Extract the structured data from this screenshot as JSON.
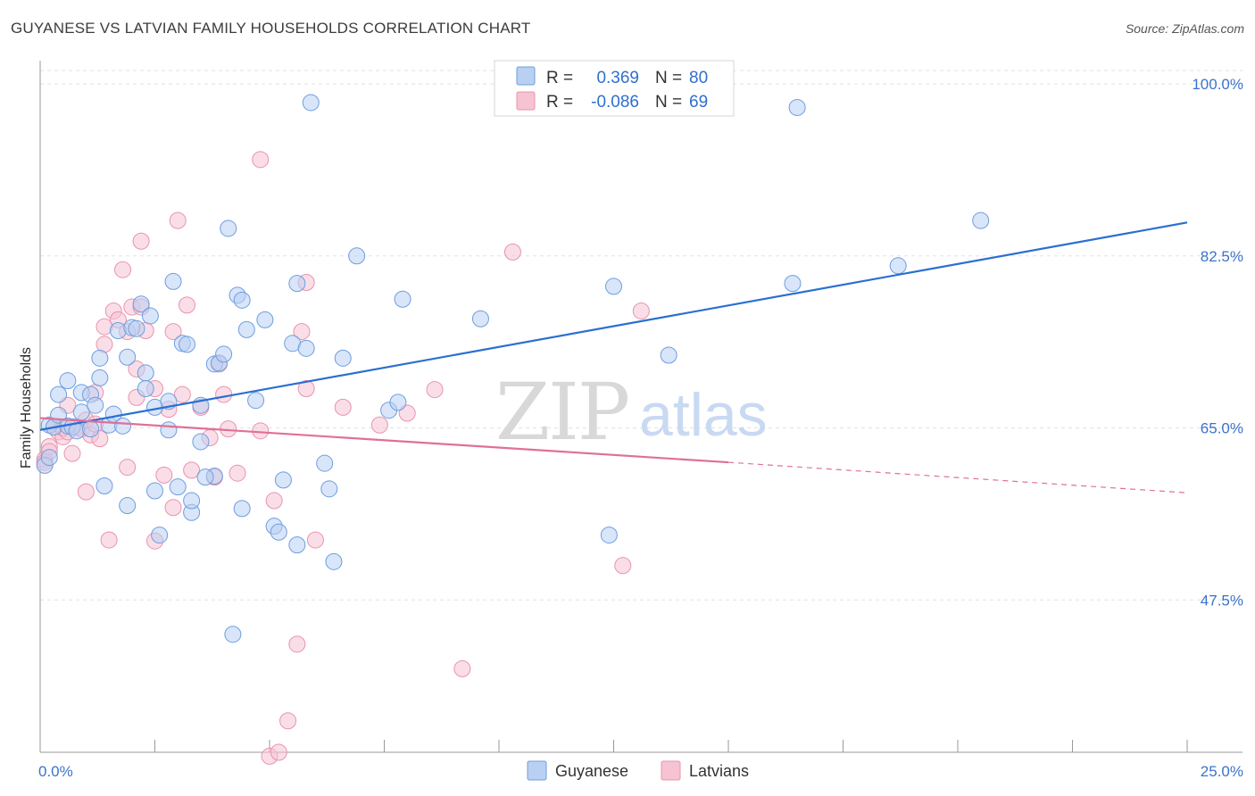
{
  "title": "GUYANESE VS LATVIAN FAMILY HOUSEHOLDS CORRELATION CHART",
  "source": "Source: ZipAtlas.com",
  "watermark": {
    "zip": "ZIP",
    "atlas": "atlas"
  },
  "legend": {
    "rows": [
      {
        "r_label": "R =",
        "r_value": "0.369",
        "n_label": "N =",
        "n_value": "80"
      },
      {
        "r_label": "R =",
        "r_value": "-0.086",
        "n_label": "N =",
        "n_value": "69"
      }
    ]
  },
  "bottom_legend": [
    "Guyanese",
    "Latvians"
  ],
  "colors": {
    "guyanese_fill": "#b9d0f2",
    "guyanese_stroke": "#6d9ee0",
    "guyanese_line": "#2a6fd1",
    "latvian_fill": "#f6c3d3",
    "latvian_stroke": "#e993ae",
    "latvian_line": "#e07097",
    "grid": "#e2e2e2",
    "tick_label": "#3b73c9"
  },
  "chart_data": {
    "type": "scatter",
    "title": "GUYANESE VS LATVIAN FAMILY HOUSEHOLDS CORRELATION CHART",
    "xlabel": "",
    "ylabel": "Family Households",
    "xlim": [
      0,
      25
    ],
    "ylim": [
      32,
      102
    ],
    "x_tick_labels": [
      "0.0%",
      "25.0%"
    ],
    "y_ticks": [
      47.5,
      65.0,
      82.5,
      100.0
    ],
    "y_tick_labels": [
      "47.5%",
      "65.0%",
      "82.5%",
      "100.0%"
    ],
    "grid": true,
    "legend_position": "top-center",
    "series": [
      {
        "name": "Guyanese",
        "r": 0.369,
        "n": 80,
        "trend": {
          "x": [
            0,
            25
          ],
          "y": [
            64.8,
            85.9
          ]
        },
        "points": [
          [
            0.1,
            61.2
          ],
          [
            0.2,
            65.3
          ],
          [
            0.3,
            65.1
          ],
          [
            0.4,
            66.3
          ],
          [
            0.4,
            68.4
          ],
          [
            0.6,
            69.8
          ],
          [
            0.6,
            65.2
          ],
          [
            0.7,
            65.1
          ],
          [
            0.8,
            64.7
          ],
          [
            0.9,
            66.6
          ],
          [
            0.9,
            68.6
          ],
          [
            1.1,
            68.4
          ],
          [
            1.2,
            67.3
          ],
          [
            1.3,
            72.1
          ],
          [
            1.3,
            70.1
          ],
          [
            1.4,
            59.1
          ],
          [
            1.5,
            65.3
          ],
          [
            1.6,
            66.4
          ],
          [
            1.7,
            74.9
          ],
          [
            1.8,
            65.2
          ],
          [
            1.9,
            72.2
          ],
          [
            1.9,
            57.1
          ],
          [
            2.0,
            75.2
          ],
          [
            2.1,
            75.1
          ],
          [
            2.2,
            77.6
          ],
          [
            2.3,
            70.6
          ],
          [
            2.3,
            69.0
          ],
          [
            2.4,
            76.4
          ],
          [
            2.5,
            67.1
          ],
          [
            2.5,
            58.6
          ],
          [
            2.6,
            54.1
          ],
          [
            2.8,
            67.7
          ],
          [
            2.8,
            64.8
          ],
          [
            2.9,
            79.9
          ],
          [
            3.0,
            59.0
          ],
          [
            3.1,
            73.6
          ],
          [
            3.2,
            73.5
          ],
          [
            3.3,
            56.4
          ],
          [
            3.3,
            57.6
          ],
          [
            3.5,
            63.6
          ],
          [
            3.5,
            67.3
          ],
          [
            3.8,
            60.1
          ],
          [
            3.8,
            71.5
          ],
          [
            3.9,
            71.6
          ],
          [
            4.0,
            72.5
          ],
          [
            4.1,
            85.3
          ],
          [
            4.2,
            44.0
          ],
          [
            4.3,
            78.5
          ],
          [
            4.4,
            56.8
          ],
          [
            4.4,
            78.0
          ],
          [
            4.5,
            75.0
          ],
          [
            4.7,
            67.8
          ],
          [
            4.9,
            76.0
          ],
          [
            5.1,
            55.0
          ],
          [
            5.2,
            54.4
          ],
          [
            5.3,
            59.7
          ],
          [
            5.5,
            73.6
          ],
          [
            5.6,
            79.7
          ],
          [
            5.6,
            53.1
          ],
          [
            5.8,
            73.1
          ],
          [
            5.9,
            98.1
          ],
          [
            6.2,
            61.4
          ],
          [
            6.3,
            58.8
          ],
          [
            6.4,
            51.4
          ],
          [
            6.6,
            72.1
          ],
          [
            6.9,
            82.5
          ],
          [
            7.6,
            66.8
          ],
          [
            7.8,
            67.6
          ],
          [
            7.9,
            78.1
          ],
          [
            9.6,
            76.1
          ],
          [
            12.4,
            54.1
          ],
          [
            12.5,
            79.4
          ],
          [
            13.7,
            72.4
          ],
          [
            16.4,
            79.7
          ],
          [
            16.5,
            97.6
          ],
          [
            18.7,
            81.5
          ],
          [
            20.5,
            86.1
          ],
          [
            0.2,
            62.0
          ],
          [
            1.1,
            64.9
          ],
          [
            3.6,
            60.0
          ]
        ]
      },
      {
        "name": "Latvians",
        "r": -0.086,
        "n": 69,
        "trend": {
          "x": [
            0,
            15
          ],
          "y": [
            66.0,
            61.5
          ]
        },
        "trend_dashed": {
          "x": [
            15,
            25
          ],
          "y": [
            61.5,
            58.4
          ]
        },
        "points": [
          [
            0.1,
            61.8
          ],
          [
            0.1,
            61.5
          ],
          [
            0.2,
            63.1
          ],
          [
            0.2,
            62.6
          ],
          [
            0.3,
            65.1
          ],
          [
            0.4,
            64.6
          ],
          [
            0.5,
            64.1
          ],
          [
            0.5,
            65.0
          ],
          [
            0.6,
            64.6
          ],
          [
            0.6,
            67.3
          ],
          [
            0.7,
            62.4
          ],
          [
            0.8,
            65.1
          ],
          [
            0.9,
            64.9
          ],
          [
            1.0,
            58.5
          ],
          [
            1.0,
            65.8
          ],
          [
            1.1,
            64.3
          ],
          [
            1.2,
            65.4
          ],
          [
            1.2,
            68.6
          ],
          [
            1.3,
            63.9
          ],
          [
            1.4,
            73.5
          ],
          [
            1.4,
            75.3
          ],
          [
            1.5,
            53.6
          ],
          [
            1.6,
            76.9
          ],
          [
            1.7,
            76.0
          ],
          [
            1.8,
            81.1
          ],
          [
            1.9,
            61.0
          ],
          [
            1.9,
            74.8
          ],
          [
            2.0,
            77.3
          ],
          [
            2.1,
            71.0
          ],
          [
            2.1,
            68.1
          ],
          [
            2.2,
            84.0
          ],
          [
            2.2,
            77.3
          ],
          [
            2.3,
            74.9
          ],
          [
            2.5,
            53.5
          ],
          [
            2.5,
            69.0
          ],
          [
            2.7,
            60.2
          ],
          [
            2.8,
            66.9
          ],
          [
            2.9,
            56.9
          ],
          [
            2.9,
            74.8
          ],
          [
            3.0,
            86.1
          ],
          [
            3.1,
            68.4
          ],
          [
            3.2,
            77.5
          ],
          [
            3.3,
            60.7
          ],
          [
            3.5,
            67.1
          ],
          [
            3.7,
            64.0
          ],
          [
            3.8,
            60.0
          ],
          [
            3.9,
            71.5
          ],
          [
            4.0,
            68.4
          ],
          [
            4.1,
            64.9
          ],
          [
            4.3,
            60.4
          ],
          [
            4.8,
            64.7
          ],
          [
            4.8,
            92.3
          ],
          [
            5.0,
            31.6
          ],
          [
            5.1,
            57.6
          ],
          [
            5.2,
            32.0
          ],
          [
            5.4,
            35.2
          ],
          [
            5.6,
            43.0
          ],
          [
            5.7,
            74.8
          ],
          [
            5.8,
            79.8
          ],
          [
            5.8,
            69.0
          ],
          [
            6.0,
            53.6
          ],
          [
            6.6,
            67.1
          ],
          [
            7.4,
            65.3
          ],
          [
            8.0,
            66.5
          ],
          [
            8.6,
            68.9
          ],
          [
            9.2,
            40.5
          ],
          [
            10.3,
            82.9
          ],
          [
            12.7,
            51.0
          ],
          [
            13.1,
            76.9
          ]
        ]
      }
    ]
  }
}
